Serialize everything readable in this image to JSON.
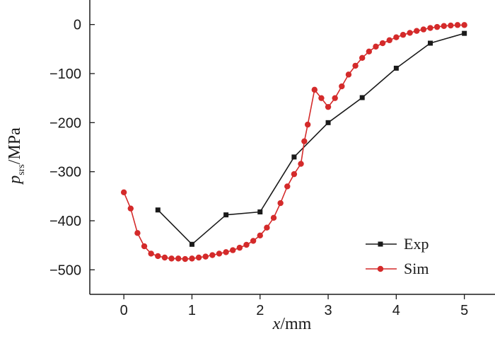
{
  "chart_data": {
    "type": "line",
    "title": "",
    "xlabel": {
      "italic": "x",
      "rest": "/mm"
    },
    "ylabel": {
      "italic": "p",
      "subscript": "srs",
      "rest": "/MPa"
    },
    "xlim": [
      -0.5,
      5.45
    ],
    "ylim": [
      -550,
      50
    ],
    "xticks": [
      0,
      1,
      2,
      3,
      4,
      5
    ],
    "yticks": [
      0,
      -100,
      -200,
      -300,
      -400,
      -500
    ],
    "xtick_labels": [
      "0",
      "1",
      "2",
      "3",
      "4",
      "5"
    ],
    "ytick_labels": [
      "0",
      "−100",
      "−200",
      "−300",
      "−400",
      "−500"
    ],
    "grid": false,
    "legend_position": "bottom-right",
    "series": [
      {
        "name": "Exp",
        "color": "#1a1a1a",
        "marker": "square",
        "x": [
          0.5,
          1.0,
          1.5,
          2.0,
          2.5,
          3.0,
          3.5,
          4.0,
          4.5,
          5.0
        ],
        "y": [
          -378,
          -448,
          -388,
          -382,
          -270,
          -200,
          -149,
          -89,
          -38,
          -18
        ]
      },
      {
        "name": "Sim",
        "color": "#d42a2a",
        "marker": "circle",
        "x": [
          0.0,
          0.1,
          0.2,
          0.3,
          0.4,
          0.5,
          0.6,
          0.7,
          0.8,
          0.9,
          1.0,
          1.1,
          1.2,
          1.3,
          1.4,
          1.5,
          1.6,
          1.7,
          1.8,
          1.9,
          2.0,
          2.1,
          2.2,
          2.3,
          2.4,
          2.5,
          2.6,
          2.65,
          2.7,
          2.8,
          2.9,
          3.0,
          3.1,
          3.2,
          3.3,
          3.4,
          3.5,
          3.6,
          3.7,
          3.8,
          3.9,
          4.0,
          4.1,
          4.2,
          4.3,
          4.4,
          4.5,
          4.6,
          4.7,
          4.8,
          4.9,
          5.0
        ],
        "y": [
          -342,
          -375,
          -425,
          -452,
          -467,
          -472,
          -475,
          -477,
          -477,
          -478,
          -477,
          -475,
          -473,
          -470,
          -467,
          -464,
          -460,
          -455,
          -449,
          -441,
          -430,
          -414,
          -394,
          -364,
          -330,
          -305,
          -284,
          -238,
          -204,
          -133,
          -150,
          -168,
          -150,
          -126,
          -102,
          -84,
          -68,
          -55,
          -45,
          -38,
          -32,
          -26,
          -21,
          -17,
          -13,
          -10,
          -7,
          -5,
          -3,
          -2,
          -1,
          -1
        ]
      }
    ]
  }
}
